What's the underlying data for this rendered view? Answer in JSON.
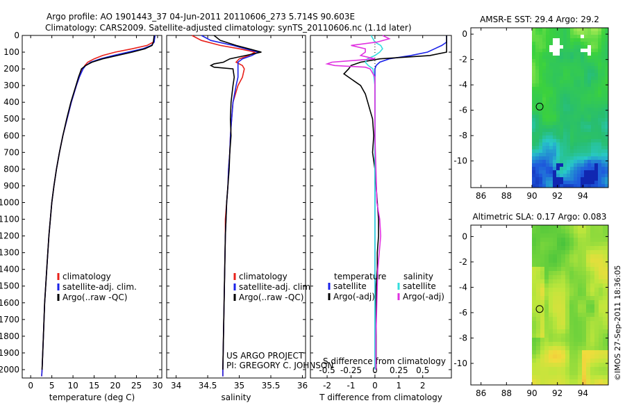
{
  "header": {
    "line1": "Argo profile: AO 1901443_37 04-Jun-2011 20110606_273 5.714S 90.603E",
    "line2": "Climatology: CARS2009. Satellite-adjusted climatology: synTS_20110606.nc (1.1d later)"
  },
  "credits": {
    "project": "US ARGO PROJECT",
    "pi": "PI: GREGORY C. JOHNSON",
    "stamp": "©IMOS 27-Sep-2011 18:36:05"
  },
  "colors": {
    "climatology": "#e8201a",
    "satellite": "#1a22e8",
    "argo": "#000000",
    "salinity_satellite": "#33dddd",
    "salinity_argo": "#e030e0"
  },
  "chart_data": [
    {
      "type": "line",
      "name": "temperature",
      "xlabel": "temperature (deg C)",
      "ylabel": "",
      "xlim": [
        -2,
        31
      ],
      "ylim": [
        2050,
        0
      ],
      "xticks": [
        0,
        5,
        10,
        15,
        20,
        25,
        30
      ],
      "yticks": [
        0,
        100,
        200,
        300,
        400,
        500,
        600,
        700,
        800,
        900,
        1000,
        1100,
        1200,
        1300,
        1400,
        1500,
        1600,
        1700,
        1800,
        1900,
        2000
      ],
      "legend": [
        "climatology",
        "satellite-adj. clim.",
        "Argo(..raw -QC)"
      ],
      "series": [
        {
          "name": "climatology",
          "depth": [
            0,
            20,
            40,
            60,
            80,
            100,
            120,
            140,
            160,
            180,
            200,
            250,
            300,
            400,
            500,
            600,
            700,
            800,
            900,
            1000,
            1200,
            1400,
            1600,
            1800,
            2000,
            2040
          ],
          "values": [
            29.3,
            29.2,
            29.0,
            27.5,
            24.0,
            20.0,
            17.0,
            15.0,
            13.5,
            12.8,
            12.3,
            11.5,
            10.8,
            9.6,
            8.6,
            7.6,
            6.8,
            6.1,
            5.5,
            5.0,
            4.3,
            3.8,
            3.3,
            3.0,
            2.7,
            2.6
          ]
        },
        {
          "name": "satellite-adj. clim.",
          "depth": [
            0,
            20,
            40,
            60,
            80,
            100,
            120,
            140,
            160,
            180,
            200,
            250,
            300,
            400,
            500,
            600,
            700,
            800,
            900,
            1000,
            1200,
            1400,
            1600,
            1800,
            2000,
            2040
          ],
          "values": [
            29.4,
            29.3,
            29.2,
            28.5,
            26.5,
            23.0,
            19.5,
            16.5,
            14.2,
            13.0,
            12.4,
            11.5,
            10.8,
            9.6,
            8.6,
            7.6,
            6.8,
            6.1,
            5.5,
            5.0,
            4.3,
            3.8,
            3.3,
            3.0,
            2.7,
            2.6
          ]
        },
        {
          "name": "Argo(..raw -QC)",
          "depth": [
            0,
            20,
            40,
            60,
            80,
            100,
            120,
            140,
            160,
            180,
            200,
            250,
            300,
            400,
            500,
            600,
            700,
            800,
            900,
            1000,
            1200,
            1400,
            1600,
            1800,
            2000
          ],
          "values": [
            29.2,
            29.1,
            29.0,
            28.7,
            27.0,
            24.0,
            20.5,
            17.0,
            14.5,
            13.0,
            12.0,
            11.3,
            10.7,
            9.5,
            8.5,
            7.6,
            6.8,
            6.1,
            5.5,
            5.0,
            4.3,
            3.8,
            3.3,
            3.0,
            2.7
          ]
        }
      ]
    },
    {
      "type": "line",
      "name": "salinity",
      "xlabel": "salinity",
      "ylabel": "",
      "xlim": [
        33.85,
        36.05
      ],
      "ylim": [
        2050,
        0
      ],
      "xticks": [
        34,
        34.5,
        35,
        35.5,
        36
      ],
      "xticklabels": [
        "34",
        "34.5",
        "35",
        "35.5",
        "36"
      ],
      "legend": [
        "climatology",
        "satellite-adj. clim.",
        "Argo(..raw -QC)"
      ],
      "series": [
        {
          "name": "climatology",
          "depth": [
            0,
            30,
            60,
            80,
            100,
            120,
            140,
            160,
            180,
            200,
            250,
            300,
            400,
            500,
            600,
            700,
            800,
            900,
            1000,
            1100,
            1200,
            1400,
            1600,
            1800,
            2000,
            2040
          ],
          "values": [
            34.25,
            34.4,
            34.7,
            35.0,
            35.25,
            35.15,
            35.0,
            34.95,
            35.05,
            35.08,
            35.05,
            34.98,
            34.9,
            34.88,
            34.86,
            34.85,
            34.83,
            34.82,
            34.8,
            34.78,
            34.78,
            34.77,
            34.76,
            34.75,
            34.74,
            34.74
          ]
        },
        {
          "name": "satellite-adj. clim.",
          "depth": [
            0,
            30,
            60,
            80,
            100,
            120,
            140,
            160,
            180,
            200,
            250,
            300,
            400,
            500,
            600,
            700,
            800,
            900,
            1000,
            1100,
            1200,
            1400,
            1600,
            1800,
            2000,
            2040
          ],
          "values": [
            34.4,
            34.55,
            34.9,
            35.1,
            35.3,
            35.2,
            35.05,
            34.98,
            34.98,
            34.98,
            34.98,
            34.95,
            34.9,
            34.88,
            34.86,
            34.85,
            34.83,
            34.82,
            34.8,
            34.79,
            34.78,
            34.77,
            34.76,
            34.75,
            34.74,
            34.74
          ]
        },
        {
          "name": "Argo(..raw -QC)",
          "depth": [
            0,
            30,
            60,
            80,
            100,
            120,
            140,
            160,
            170,
            180,
            190,
            200,
            250,
            300,
            400,
            500,
            600,
            700,
            800,
            900,
            1000,
            1100,
            1200,
            1400,
            1600,
            1800,
            2000
          ],
          "values": [
            34.6,
            34.7,
            34.95,
            35.15,
            35.35,
            35.1,
            34.85,
            34.75,
            34.6,
            34.55,
            34.6,
            34.9,
            34.92,
            34.9,
            34.87,
            34.86,
            34.87,
            34.85,
            34.84,
            34.82,
            34.8,
            34.79,
            34.78,
            34.77,
            34.76,
            34.75,
            34.74
          ]
        }
      ]
    },
    {
      "type": "line",
      "name": "difference",
      "xlabel": "T difference from climatology",
      "xlabel2": "S difference from climatology",
      "xlim": [
        -2.7,
        3.2
      ],
      "ylim": [
        2050,
        0
      ],
      "xticks": [
        -2,
        -1,
        0,
        1,
        2
      ],
      "sticks": [
        -0.5,
        -0.25,
        0,
        0.25,
        0.5
      ],
      "sticklabels": [
        "-0.5",
        "-0.25",
        "0",
        "0.25",
        "0.5"
      ],
      "legend_groups": [
        "temperature",
        "salinity"
      ],
      "legend": [
        "satellite",
        "Argo(-adj)",
        "satellite",
        "Argo(-adj)"
      ],
      "series": [
        {
          "name": "temperature satellite",
          "depth": [
            0,
            20,
            40,
            60,
            80,
            100,
            120,
            140,
            160,
            180,
            200,
            250,
            300,
            400,
            500,
            600,
            800,
            1000,
            1400,
            1800,
            2000
          ],
          "values": [
            3.0,
            3.0,
            3.0,
            2.8,
            2.5,
            2.2,
            1.5,
            0.6,
            0.2,
            0.05,
            0.0,
            0.0,
            0.0,
            0.0,
            0.0,
            0.0,
            0.0,
            0.0,
            0.0,
            0.0,
            0.0
          ]
        },
        {
          "name": "temperature Argo(-adj)",
          "depth": [
            0,
            20,
            40,
            60,
            80,
            100,
            120,
            140,
            160,
            180,
            200,
            230,
            260,
            300,
            350,
            400,
            450,
            500,
            600,
            700,
            800,
            900,
            1000,
            1100,
            1200,
            1300,
            1400,
            1500,
            1600,
            1800,
            2000
          ],
          "values": [
            3.0,
            3.0,
            3.0,
            3.0,
            3.0,
            3.0,
            2.3,
            0.2,
            -0.6,
            -1.0,
            -1.1,
            -1.3,
            -1.0,
            -0.6,
            -0.4,
            -0.3,
            -0.2,
            -0.1,
            -0.05,
            -0.1,
            0.0,
            0.05,
            0.1,
            0.15,
            0.15,
            0.1,
            0.1,
            0.05,
            0.05,
            0.05,
            0.05
          ]
        },
        {
          "name": "salinity satellite",
          "depth": [
            0,
            20,
            40,
            60,
            80,
            100,
            120,
            140,
            160,
            180,
            200,
            250,
            300,
            400,
            500,
            600,
            800,
            1000,
            1400,
            1800,
            2000
          ],
          "values": [
            -0.04,
            -0.02,
            0.0,
            0.06,
            0.08,
            0.05,
            0.0,
            -0.08,
            -0.1,
            -0.07,
            -0.02,
            -0.01,
            0.0,
            0.0,
            0.0,
            0.0,
            0.0,
            0.0,
            0.0,
            0.0,
            0.0
          ]
        },
        {
          "name": "salinity Argo(-adj)",
          "depth": [
            0,
            20,
            40,
            60,
            80,
            100,
            120,
            140,
            160,
            170,
            180,
            190,
            200,
            250,
            300,
            400,
            500,
            600,
            800,
            1000,
            1100,
            1200,
            1400,
            1800,
            2000
          ],
          "values": [
            0.08,
            0.15,
            0.02,
            -0.25,
            -0.1,
            -0.1,
            -0.15,
            0.0,
            -0.45,
            -0.5,
            -0.42,
            -0.1,
            -0.05,
            0.0,
            0.0,
            0.0,
            0.0,
            0.0,
            0.01,
            0.02,
            0.05,
            0.06,
            0.03,
            0.01,
            0.01
          ]
        }
      ]
    },
    {
      "type": "heatmap",
      "name": "sst_map",
      "title": "AMSR-E SST: 29.4 Argo: 29.2",
      "xlim": [
        85.2,
        96.0
      ],
      "ylim": [
        -12.1,
        0.5
      ],
      "xticks": [
        86,
        88,
        90,
        92,
        94
      ],
      "yticks": [
        -10,
        -8,
        -6,
        -4,
        -2,
        0
      ],
      "data_extent": [
        90.0,
        96.0
      ],
      "marker": {
        "lon": 90.603,
        "lat": -5.714,
        "value": 29.2
      }
    },
    {
      "type": "heatmap",
      "name": "sla_map",
      "title": "Altimetric SLA: 0.17 Argo: 0.083",
      "xlim": [
        85.2,
        96.0
      ],
      "ylim": [
        -11.7,
        0.9
      ],
      "xticks": [
        86,
        88,
        90,
        92,
        94
      ],
      "yticks": [
        -10,
        -8,
        -6,
        -4,
        -2,
        0
      ],
      "data_extent": [
        90.0,
        96.0
      ],
      "marker": {
        "lon": 90.603,
        "lat": -5.714,
        "value": 0.083
      }
    }
  ]
}
